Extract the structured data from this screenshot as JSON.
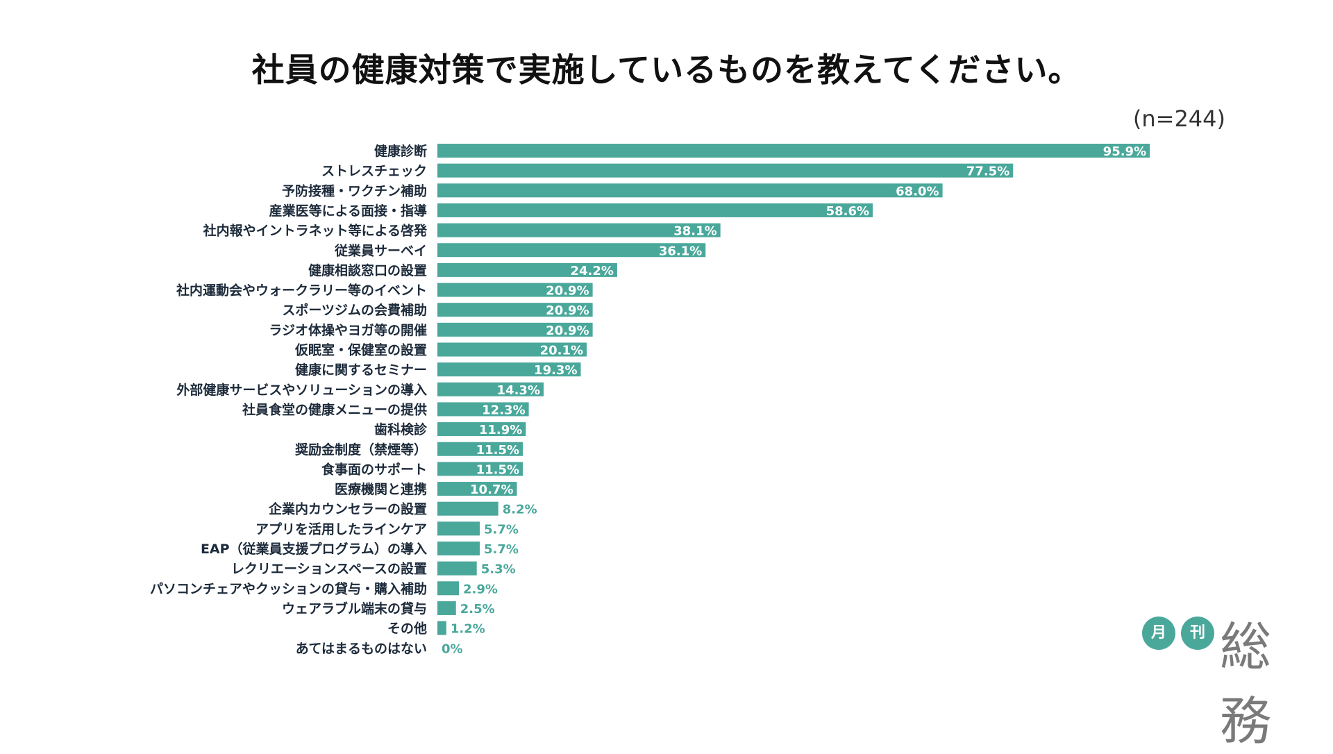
{
  "title": "社員の健康対策で実施しているものを教えてください。",
  "sample": "(n=244)",
  "colors": {
    "bar": "#4aa89b",
    "label": "#1c2a3a",
    "brand": "#4aa89b"
  },
  "brand": {
    "circle1": "月",
    "circle2": "刊",
    "name": "総務"
  },
  "chart_data": {
    "type": "bar",
    "orientation": "horizontal",
    "title": "社員の健康対策で実施しているものを教えてください。",
    "unit": "%",
    "xlim": [
      0,
      100
    ],
    "grid": false,
    "categories": [
      "健康診断",
      "ストレスチェック",
      "予防接種・ワクチン補助",
      "産業医等による面接・指導",
      "社内報やイントラネット等による啓発",
      "従業員サーベイ",
      "健康相談窓口の設置",
      "社内運動会やウォークラリー等のイベント",
      "スポーツジムの会費補助",
      "ラジオ体操やヨガ等の開催",
      "仮眠室・保健室の設置",
      "健康に関するセミナー",
      "外部健康サービスやソリューションの導入",
      "社員食堂の健康メニューの提供",
      "歯科検診",
      "奨励金制度（禁煙等）",
      "食事面のサポート",
      "医療機関と連携",
      "企業内カウンセラーの設置",
      "アプリを活用したラインケア",
      "EAP（従業員支援プログラム）の導入",
      "レクリエーションスペースの設置",
      "パソコンチェアやクッションの貸与・購入補助",
      "ウェアラブル端末の貸与",
      "その他",
      "あてはまるものはない"
    ],
    "values": [
      95.9,
      77.5,
      68.0,
      58.6,
      38.1,
      36.1,
      24.2,
      20.9,
      20.9,
      20.9,
      20.1,
      19.3,
      14.3,
      12.3,
      11.9,
      11.5,
      11.5,
      10.7,
      8.2,
      5.7,
      5.7,
      5.3,
      2.9,
      2.5,
      1.2,
      0
    ],
    "value_labels": [
      "95.9%",
      "77.5%",
      "68.0%",
      "58.6%",
      "38.1%",
      "36.1%",
      "24.2%",
      "20.9%",
      "20.9%",
      "20.9%",
      "20.1%",
      "19.3%",
      "14.3%",
      "12.3%",
      "11.9%",
      "11.5%",
      "11.5%",
      "10.7%",
      "8.2%",
      "5.7%",
      "5.7%",
      "5.3%",
      "2.9%",
      "2.5%",
      "1.2%",
      "0%"
    ]
  }
}
